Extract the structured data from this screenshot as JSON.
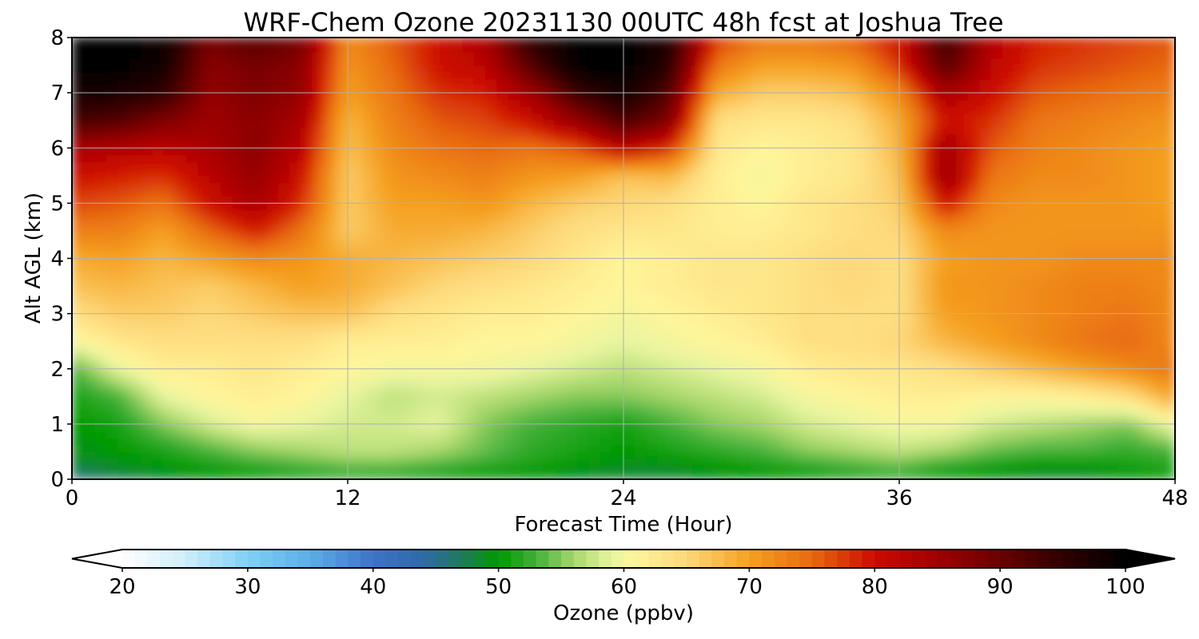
{
  "chart_data": {
    "type": "heatmap",
    "title": "WRF-Chem Ozone  20231130 00UTC 48h fcst at Joshua Tree",
    "xlabel": "Forecast Time (Hour)",
    "ylabel": "Alt AGL (km)",
    "xlim": [
      0,
      48
    ],
    "ylim": [
      0,
      8
    ],
    "x_ticks": [
      0,
      12,
      24,
      36,
      48
    ],
    "y_ticks": [
      0,
      1,
      2,
      3,
      4,
      5,
      6,
      7,
      8
    ],
    "grid": true,
    "colorbar": {
      "label": "Ozone  (ppbv)",
      "range": [
        20,
        100
      ],
      "ticks": [
        20,
        30,
        40,
        50,
        60,
        70,
        80,
        90,
        100
      ],
      "extend": "both",
      "colors": [
        {
          "value": 20,
          "color": "#ffffff"
        },
        {
          "value": 25,
          "color": "#cfeefa"
        },
        {
          "value": 30,
          "color": "#7fd0f5"
        },
        {
          "value": 35,
          "color": "#5aaee8"
        },
        {
          "value": 40,
          "color": "#3f72c9"
        },
        {
          "value": 44,
          "color": "#2e6aa8"
        },
        {
          "value": 47,
          "color": "#1f7a5c"
        },
        {
          "value": 50,
          "color": "#009900"
        },
        {
          "value": 53,
          "color": "#44b03a"
        },
        {
          "value": 56,
          "color": "#a6d66a"
        },
        {
          "value": 59,
          "color": "#e8f5a0"
        },
        {
          "value": 61,
          "color": "#fff59a"
        },
        {
          "value": 65,
          "color": "#fdd87a"
        },
        {
          "value": 70,
          "color": "#f5a020"
        },
        {
          "value": 75,
          "color": "#e86a10"
        },
        {
          "value": 80,
          "color": "#cc0a00"
        },
        {
          "value": 85,
          "color": "#a00000"
        },
        {
          "value": 90,
          "color": "#6a0000"
        },
        {
          "value": 95,
          "color": "#300000"
        },
        {
          "value": 100,
          "color": "#000000"
        }
      ]
    },
    "grid_x": [
      0,
      2,
      4,
      6,
      8,
      10,
      12,
      14,
      16,
      18,
      20,
      22,
      24,
      26,
      28,
      30,
      32,
      34,
      36,
      38,
      40,
      42,
      44,
      46,
      48
    ],
    "grid_y": [
      0,
      0.25,
      0.5,
      1,
      1.5,
      2,
      2.5,
      3,
      3.5,
      4,
      4.5,
      5,
      5.5,
      6,
      6.5,
      7,
      7.5,
      8
    ],
    "ozone_ppbv": [
      [
        45,
        47,
        48,
        49,
        50,
        51,
        52,
        51,
        50,
        49,
        49,
        48,
        48,
        48,
        49,
        49,
        50,
        51,
        52,
        50,
        49,
        48,
        48,
        49,
        50
      ],
      [
        48,
        49,
        50,
        51,
        52,
        53,
        54,
        54,
        53,
        52,
        51,
        50,
        49,
        49,
        50,
        51,
        52,
        53,
        54,
        52,
        51,
        50,
        50,
        51,
        52
      ],
      [
        49,
        50,
        51,
        53,
        55,
        56,
        57,
        57,
        56,
        54,
        52,
        51,
        50,
        51,
        52,
        53,
        55,
        56,
        57,
        56,
        54,
        53,
        53,
        52,
        53
      ],
      [
        50,
        51,
        55,
        58,
        60,
        59,
        58,
        58,
        59,
        55,
        53,
        52,
        51,
        53,
        55,
        56,
        58,
        59,
        60,
        60,
        58,
        57,
        56,
        55,
        60
      ],
      [
        51,
        53,
        59,
        61,
        62,
        61,
        59,
        57,
        58,
        57,
        56,
        55,
        55,
        56,
        57,
        58,
        60,
        61,
        62,
        62,
        61,
        61,
        62,
        64,
        70
      ],
      [
        53,
        59,
        62,
        62,
        63,
        62,
        61,
        60,
        60,
        60,
        59,
        58,
        57,
        58,
        59,
        60,
        62,
        63,
        63,
        64,
        66,
        68,
        70,
        72,
        74
      ],
      [
        60,
        63,
        64,
        64,
        64,
        64,
        62,
        62,
        62,
        61,
        61,
        60,
        59,
        60,
        61,
        62,
        64,
        64,
        65,
        68,
        70,
        72,
        74,
        75,
        72
      ],
      [
        64,
        66,
        66,
        65,
        66,
        67,
        67,
        64,
        63,
        62,
        62,
        61,
        60,
        61,
        62,
        63,
        64,
        64,
        64,
        70,
        71,
        72,
        73,
        74,
        72
      ],
      [
        67,
        68,
        67,
        66,
        68,
        70,
        69,
        67,
        65,
        64,
        63,
        62,
        61,
        62,
        63,
        63,
        64,
        65,
        64,
        71,
        71,
        72,
        73,
        73,
        72
      ],
      [
        69,
        70,
        68,
        70,
        72,
        71,
        69,
        68,
        67,
        66,
        65,
        63,
        61,
        62,
        63,
        63,
        64,
        65,
        64,
        70,
        71,
        71,
        72,
        72,
        72
      ],
      [
        73,
        73,
        70,
        75,
        79,
        74,
        66,
        69,
        69,
        68,
        66,
        64,
        63,
        63,
        62,
        62,
        63,
        64,
        65,
        72,
        71,
        71,
        71,
        71,
        71
      ],
      [
        77,
        76,
        74,
        80,
        84,
        78,
        66,
        70,
        70,
        71,
        68,
        66,
        65,
        64,
        62,
        61,
        63,
        64,
        66,
        80,
        72,
        71,
        71,
        71,
        70
      ],
      [
        80,
        79,
        78,
        82,
        86,
        80,
        66,
        71,
        72,
        73,
        71,
        70,
        67,
        68,
        62,
        60,
        62,
        63,
        67,
        86,
        74,
        72,
        72,
        71,
        70
      ],
      [
        84,
        83,
        82,
        84,
        87,
        82,
        67,
        72,
        74,
        75,
        74,
        76,
        82,
        78,
        63,
        61,
        62,
        63,
        68,
        85,
        76,
        73,
        72,
        71,
        70
      ],
      [
        93,
        92,
        88,
        85,
        87,
        84,
        68,
        73,
        76,
        77,
        80,
        86,
        93,
        88,
        64,
        63,
        63,
        64,
        69,
        80,
        78,
        74,
        73,
        72,
        71
      ],
      [
        98,
        97,
        95,
        86,
        88,
        86,
        70,
        74,
        78,
        79,
        85,
        94,
        98,
        92,
        69,
        66,
        66,
        67,
        72,
        84,
        80,
        76,
        75,
        74,
        73
      ],
      [
        100,
        100,
        98,
        87,
        89,
        87,
        71,
        75,
        80,
        82,
        92,
        100,
        100,
        96,
        74,
        70,
        70,
        71,
        78,
        92,
        82,
        78,
        77,
        76,
        75
      ],
      [
        100,
        100,
        99,
        89,
        92,
        89,
        72,
        76,
        80,
        84,
        96,
        100,
        100,
        97,
        78,
        74,
        74,
        76,
        80,
        94,
        83,
        79,
        78,
        77,
        76
      ]
    ]
  }
}
